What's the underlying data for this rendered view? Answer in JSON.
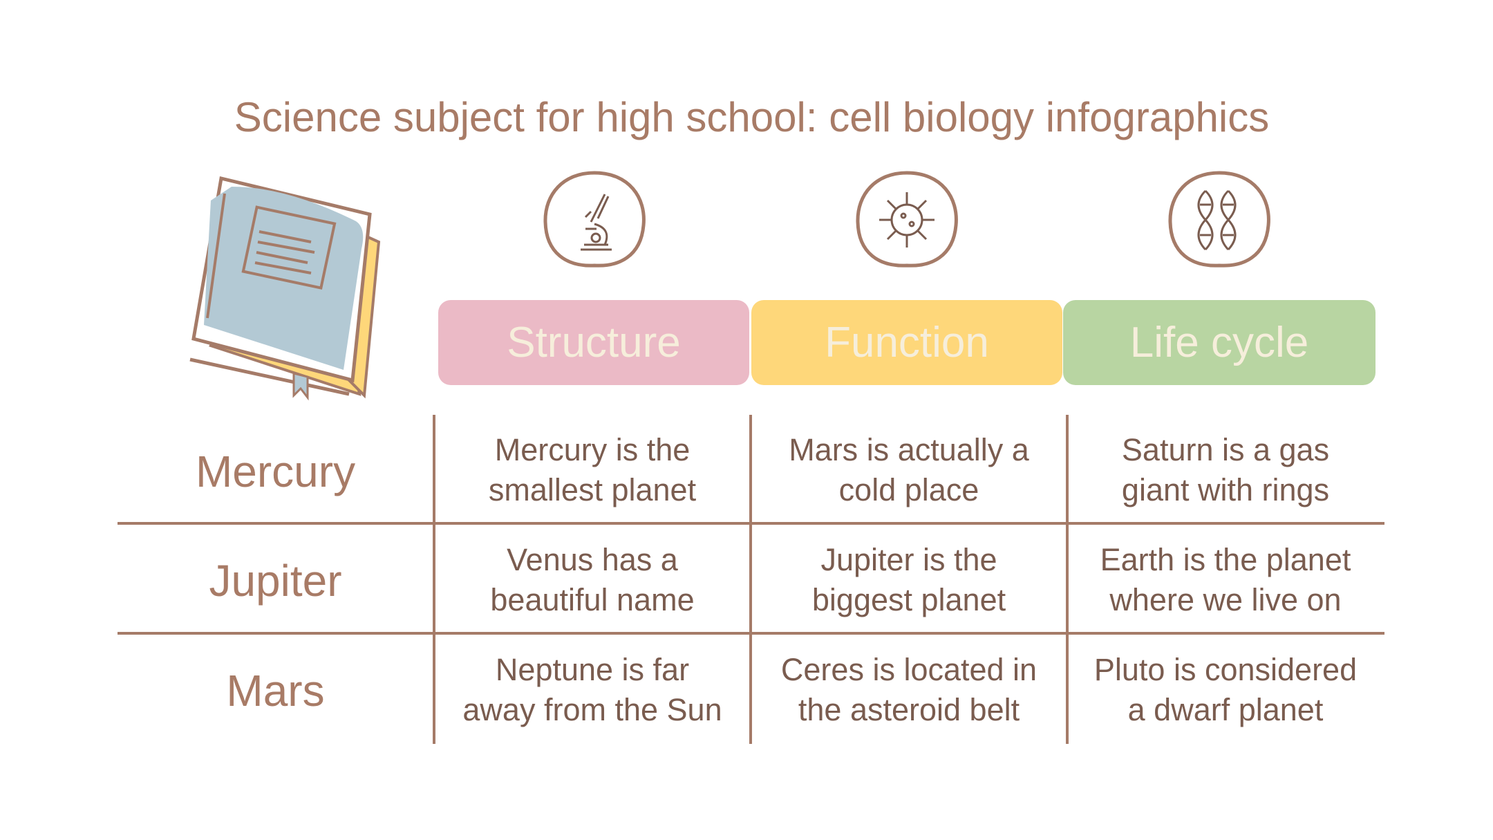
{
  "title": "Science subject for high school: cell biology infographics",
  "colors": {
    "text": "#a87b66",
    "line": "#a57b68",
    "structure": "#ebbac6",
    "function": "#fed77a",
    "life_cycle": "#b8d5a2",
    "header_text": "#f6eedb"
  },
  "columns": [
    {
      "label": "Structure",
      "icon": "microscope-icon"
    },
    {
      "label": "Function",
      "icon": "virus-icon"
    },
    {
      "label": "Life cycle",
      "icon": "dna-icon"
    }
  ],
  "rows": [
    {
      "label": "Mercury",
      "cells": [
        [
          "Mercury is the",
          "smallest planet"
        ],
        [
          "Mars is actually a",
          "cold place"
        ],
        [
          "Saturn is a gas",
          "giant with rings"
        ]
      ]
    },
    {
      "label": "Jupiter",
      "cells": [
        [
          "Venus has a",
          "beautiful name"
        ],
        [
          "Jupiter is the",
          "biggest planet"
        ],
        [
          "Earth is the planet",
          "where we live on"
        ]
      ]
    },
    {
      "label": "Mars",
      "cells": [
        [
          "Neptune is far",
          "away from the Sun"
        ],
        [
          "Ceres is located in",
          "the asteroid belt"
        ],
        [
          "Pluto is considered",
          "a dwarf planet"
        ]
      ]
    }
  ]
}
